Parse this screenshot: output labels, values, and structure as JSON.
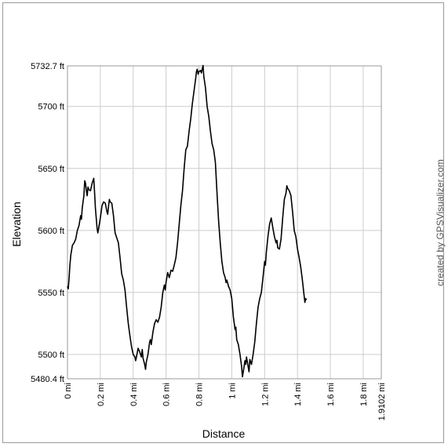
{
  "chart_data": {
    "type": "line",
    "xlabel": "Distance",
    "ylabel": "Elevation",
    "credit": "created by GPSVisualizer.com",
    "xlim": [
      0,
      1.9102
    ],
    "ylim": [
      5480.4,
      5732.7
    ],
    "grid": true,
    "x_ticks": [
      {
        "value": 0,
        "label": "0 mi"
      },
      {
        "value": 0.2,
        "label": "0.2 mi"
      },
      {
        "value": 0.4,
        "label": "0.4 mi"
      },
      {
        "value": 0.6,
        "label": "0.6 mi"
      },
      {
        "value": 0.8,
        "label": "0.8 mi"
      },
      {
        "value": 1.0,
        "label": "1 mi"
      },
      {
        "value": 1.2,
        "label": "1.2 mi"
      },
      {
        "value": 1.4,
        "label": "1.4 mi"
      },
      {
        "value": 1.6,
        "label": "1.6 mi"
      },
      {
        "value": 1.8,
        "label": "1.8 mi"
      },
      {
        "value": 1.9102,
        "label": "1.9102 mi"
      }
    ],
    "y_ticks": [
      {
        "value": 5480.4,
        "label": "5480.4 ft"
      },
      {
        "value": 5500,
        "label": "5500 ft"
      },
      {
        "value": 5550,
        "label": "5550 ft"
      },
      {
        "value": 5600,
        "label": "5600 ft"
      },
      {
        "value": 5650,
        "label": "5650 ft"
      },
      {
        "value": 5700,
        "label": "5700 ft"
      },
      {
        "value": 5732.7,
        "label": "5732.7 ft"
      }
    ],
    "series": [
      {
        "color": "#000000",
        "points": [
          [
            0,
            5555
          ],
          [
            0.005,
            5553
          ],
          [
            0.01,
            5562
          ],
          [
            0.015,
            5572
          ],
          [
            0.02,
            5580
          ],
          [
            0.03,
            5588
          ],
          [
            0.04,
            5590
          ],
          [
            0.05,
            5593
          ],
          [
            0.06,
            5600
          ],
          [
            0.07,
            5604
          ],
          [
            0.08,
            5612
          ],
          [
            0.085,
            5609
          ],
          [
            0.09,
            5618
          ],
          [
            0.1,
            5628
          ],
          [
            0.105,
            5640
          ],
          [
            0.11,
            5638
          ],
          [
            0.115,
            5632
          ],
          [
            0.12,
            5628
          ],
          [
            0.125,
            5635
          ],
          [
            0.13,
            5633
          ],
          [
            0.14,
            5632
          ],
          [
            0.15,
            5638
          ],
          [
            0.16,
            5642
          ],
          [
            0.165,
            5630
          ],
          [
            0.17,
            5618
          ],
          [
            0.18,
            5602
          ],
          [
            0.185,
            5598
          ],
          [
            0.19,
            5602
          ],
          [
            0.2,
            5610
          ],
          [
            0.21,
            5620
          ],
          [
            0.22,
            5623
          ],
          [
            0.23,
            5622
          ],
          [
            0.24,
            5615
          ],
          [
            0.245,
            5613
          ],
          [
            0.25,
            5620
          ],
          [
            0.255,
            5625
          ],
          [
            0.26,
            5623
          ],
          [
            0.27,
            5622
          ],
          [
            0.28,
            5612
          ],
          [
            0.29,
            5598
          ],
          [
            0.3,
            5594
          ],
          [
            0.31,
            5590
          ],
          [
            0.32,
            5578
          ],
          [
            0.33,
            5565
          ],
          [
            0.34,
            5560
          ],
          [
            0.35,
            5552
          ],
          [
            0.36,
            5538
          ],
          [
            0.37,
            5525
          ],
          [
            0.38,
            5515
          ],
          [
            0.39,
            5506
          ],
          [
            0.4,
            5500
          ],
          [
            0.41,
            5498
          ],
          [
            0.415,
            5495
          ],
          [
            0.42,
            5498
          ],
          [
            0.43,
            5505
          ],
          [
            0.44,
            5502
          ],
          [
            0.45,
            5498
          ],
          [
            0.455,
            5504
          ],
          [
            0.46,
            5497
          ],
          [
            0.47,
            5492
          ],
          [
            0.475,
            5488
          ],
          [
            0.48,
            5494
          ],
          [
            0.49,
            5500
          ],
          [
            0.5,
            5510
          ],
          [
            0.505,
            5512
          ],
          [
            0.51,
            5508
          ],
          [
            0.52,
            5518
          ],
          [
            0.53,
            5525
          ],
          [
            0.54,
            5528
          ],
          [
            0.55,
            5526
          ],
          [
            0.56,
            5530
          ],
          [
            0.57,
            5538
          ],
          [
            0.58,
            5550
          ],
          [
            0.585,
            5553
          ],
          [
            0.59,
            5556
          ],
          [
            0.595,
            5552
          ],
          [
            0.6,
            5558
          ],
          [
            0.61,
            5566
          ],
          [
            0.62,
            5562
          ],
          [
            0.63,
            5568
          ],
          [
            0.64,
            5567
          ],
          [
            0.65,
            5572
          ],
          [
            0.66,
            5578
          ],
          [
            0.67,
            5590
          ],
          [
            0.68,
            5605
          ],
          [
            0.69,
            5620
          ],
          [
            0.7,
            5632
          ],
          [
            0.71,
            5650
          ],
          [
            0.72,
            5665
          ],
          [
            0.73,
            5668
          ],
          [
            0.74,
            5680
          ],
          [
            0.75,
            5690
          ],
          [
            0.76,
            5702
          ],
          [
            0.77,
            5712
          ],
          [
            0.78,
            5722
          ],
          [
            0.785,
            5728
          ],
          [
            0.79,
            5730
          ],
          [
            0.795,
            5726
          ],
          [
            0.8,
            5728
          ],
          [
            0.81,
            5729
          ],
          [
            0.815,
            5727
          ],
          [
            0.82,
            5730
          ],
          [
            0.825,
            5733
          ],
          [
            0.83,
            5724
          ],
          [
            0.84,
            5715
          ],
          [
            0.85,
            5700
          ],
          [
            0.86,
            5692
          ],
          [
            0.87,
            5680
          ],
          [
            0.88,
            5670
          ],
          [
            0.89,
            5665
          ],
          [
            0.9,
            5655
          ],
          [
            0.91,
            5630
          ],
          [
            0.92,
            5608
          ],
          [
            0.93,
            5590
          ],
          [
            0.94,
            5575
          ],
          [
            0.95,
            5566
          ],
          [
            0.96,
            5562
          ],
          [
            0.965,
            5558
          ],
          [
            0.97,
            5560
          ],
          [
            0.98,
            5555
          ],
          [
            0.99,
            5552
          ],
          [
            1.0,
            5545
          ],
          [
            1.01,
            5530
          ],
          [
            1.02,
            5520
          ],
          [
            1.025,
            5522
          ],
          [
            1.03,
            5512
          ],
          [
            1.04,
            5508
          ],
          [
            1.05,
            5500
          ],
          [
            1.06,
            5490
          ],
          [
            1.065,
            5482
          ],
          [
            1.07,
            5486
          ],
          [
            1.08,
            5495
          ],
          [
            1.085,
            5492
          ],
          [
            1.09,
            5498
          ],
          [
            1.1,
            5490
          ],
          [
            1.105,
            5486
          ],
          [
            1.11,
            5496
          ],
          [
            1.12,
            5492
          ],
          [
            1.13,
            5500
          ],
          [
            1.14,
            5510
          ],
          [
            1.15,
            5525
          ],
          [
            1.16,
            5538
          ],
          [
            1.17,
            5545
          ],
          [
            1.18,
            5550
          ],
          [
            1.19,
            5562
          ],
          [
            1.2,
            5575
          ],
          [
            1.205,
            5572
          ],
          [
            1.21,
            5582
          ],
          [
            1.22,
            5595
          ],
          [
            1.23,
            5605
          ],
          [
            1.24,
            5610
          ],
          [
            1.25,
            5602
          ],
          [
            1.26,
            5595
          ],
          [
            1.27,
            5590
          ],
          [
            1.275,
            5592
          ],
          [
            1.28,
            5586
          ],
          [
            1.29,
            5585
          ],
          [
            1.3,
            5593
          ],
          [
            1.31,
            5610
          ],
          [
            1.32,
            5625
          ],
          [
            1.33,
            5630
          ],
          [
            1.335,
            5636
          ],
          [
            1.34,
            5634
          ],
          [
            1.35,
            5632
          ],
          [
            1.36,
            5628
          ],
          [
            1.37,
            5615
          ],
          [
            1.38,
            5600
          ],
          [
            1.39,
            5595
          ],
          [
            1.4,
            5585
          ],
          [
            1.41,
            5578
          ],
          [
            1.42,
            5570
          ],
          [
            1.43,
            5560
          ],
          [
            1.44,
            5548
          ],
          [
            1.445,
            5542
          ],
          [
            1.45,
            5545
          ],
          [
            1.455,
            5544
          ]
        ]
      }
    ]
  }
}
